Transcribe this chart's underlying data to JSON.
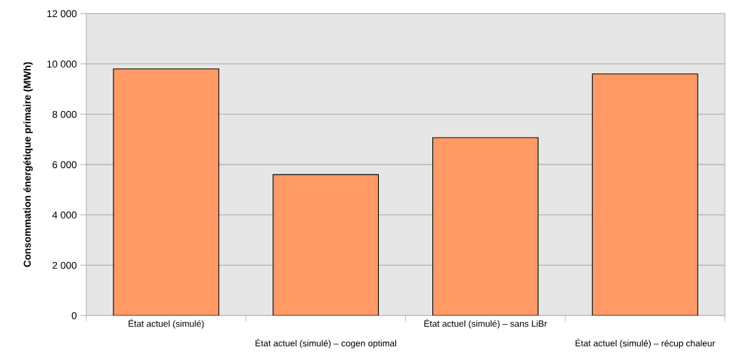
{
  "chart_data": {
    "type": "bar",
    "ylabel": "Consommation énergétique primaire (MWh)",
    "categories": [
      "État actuel (simulé)",
      "État actuel (simulé) – cogen optimal",
      "État actuel (simulé) – sans LiBr",
      "État actuel (simulé) – récup chaleur"
    ],
    "values": [
      9800,
      5600,
      7070,
      9600
    ],
    "color": "#ff9966",
    "ylim": [
      0,
      12000
    ],
    "yticks": [
      0,
      {
        "value": 2000,
        "label": "2 000"
      },
      {
        "value": 4000,
        "label": "4 000"
      },
      {
        "value": 6000,
        "label": "6 000"
      },
      {
        "value": 8000,
        "label": "8 000"
      },
      {
        "value": 10000,
        "label": "10 000"
      },
      {
        "value": 12000,
        "label": "12 000"
      }
    ],
    "grid": "y"
  }
}
